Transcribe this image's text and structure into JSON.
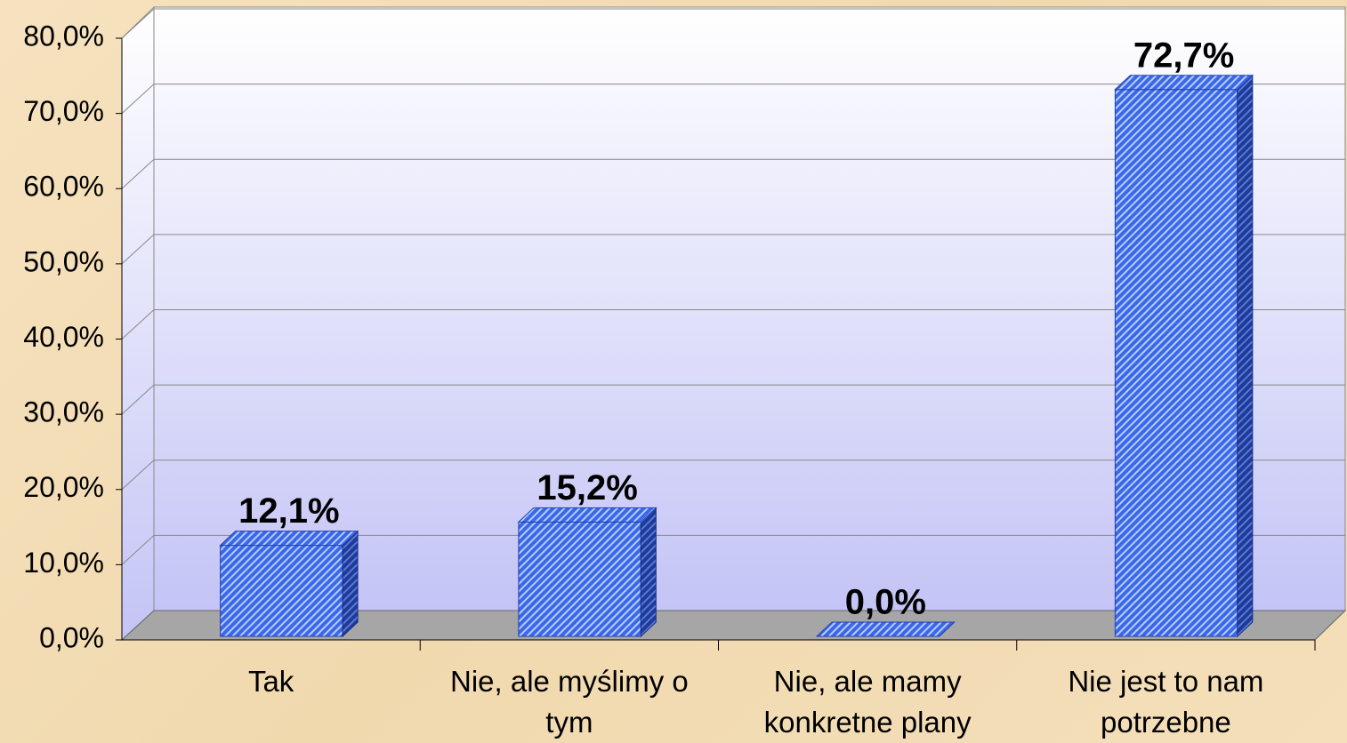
{
  "chart_data": {
    "type": "bar3d",
    "categories": [
      "Tak",
      "Nie, ale myślimy o tym",
      "Nie, ale mamy konkretne plany",
      "Nie jest to nam potrzebne"
    ],
    "values": [
      12.1,
      15.2,
      0.0,
      72.7
    ],
    "value_labels": [
      "12,1%",
      "15,2%",
      "0,0%",
      "72,7%"
    ],
    "color": "#3a68e8",
    "ylim": [
      0,
      80
    ],
    "yticks": [
      {
        "value": 0,
        "label": "0,0%"
      },
      {
        "value": 10,
        "label": "10,0%"
      },
      {
        "value": 20,
        "label": "20,0%"
      },
      {
        "value": 30,
        "label": "30,0%"
      },
      {
        "value": 40,
        "label": "40,0%"
      },
      {
        "value": 50,
        "label": "50,0%"
      },
      {
        "value": 60,
        "label": "60,0%"
      },
      {
        "value": 70,
        "label": "70,0%"
      },
      {
        "value": 80,
        "label": "80,0%"
      }
    ],
    "grid": true
  }
}
